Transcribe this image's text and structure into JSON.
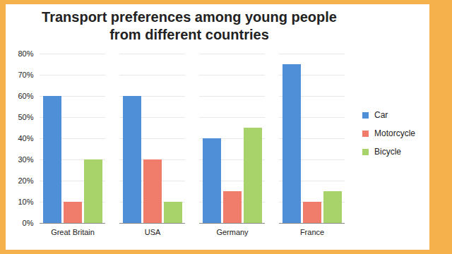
{
  "chart_data": {
    "type": "bar",
    "title": "Transport preferences among young people from different countries",
    "categories": [
      "Great Britain",
      "USA",
      "Germany",
      "France"
    ],
    "series": [
      {
        "name": "Car",
        "color": "#4f8fd8",
        "values": [
          60,
          60,
          40,
          75
        ]
      },
      {
        "name": "Motorcycle",
        "color": "#f07c6b",
        "values": [
          10,
          30,
          15,
          10
        ]
      },
      {
        "name": "Bicycle",
        "color": "#a8d36b",
        "values": [
          30,
          10,
          45,
          15
        ]
      }
    ],
    "ylim": [
      0,
      80
    ],
    "yticks": [
      {
        "value": 0,
        "label": "0%"
      },
      {
        "value": 10,
        "label": "10%"
      },
      {
        "value": 20,
        "label": "20%"
      },
      {
        "value": 30,
        "label": "30%"
      },
      {
        "value": 40,
        "label": "40%"
      },
      {
        "value": 50,
        "label": "50%"
      },
      {
        "value": 60,
        "label": "60%"
      },
      {
        "value": 70,
        "label": "70%"
      },
      {
        "value": 80,
        "label": "80%"
      }
    ],
    "grid": true,
    "legend": "right"
  }
}
